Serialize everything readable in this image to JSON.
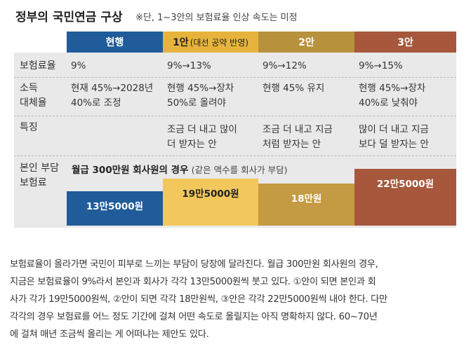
{
  "title": "정부의 국민연금 구상",
  "note": "※단, 1~3안의 보험료율 인상 속도는 미정",
  "table": {
    "columns": [
      {
        "name": "현행"
      },
      {
        "name": "1안",
        "sub": "(대선 공약 반영)"
      },
      {
        "name": "2안"
      },
      {
        "name": "3안"
      }
    ],
    "rows": [
      {
        "label": "보험료율",
        "cells": [
          "9%",
          "9%→13%",
          "9%→12%",
          "9%→15%"
        ]
      },
      {
        "label": "소득\n대체율",
        "cells": [
          "현재 45%→2028년\n40%로 조정",
          "현행 45%→장차\n50%로 올려야",
          "현행 45% 유지",
          "현행 45%→장차\n40%로 낮춰야"
        ]
      },
      {
        "label": "특징",
        "cells": [
          "",
          "조금 더 내고 많이\n더 받자는 안",
          "조금 더 내고 지금\n처럼 받자는 안",
          "많이 더 내고 지금\n보다 덜 받자는 안"
        ]
      }
    ],
    "burden": {
      "label": "본인 부담\n보험료",
      "caption": "월급 300만원 회사원의 경우",
      "caption_note": "(같은 액수를 회사가 부담)",
      "amounts": [
        "13만5000원",
        "19만5000원",
        "18만원",
        "22만5000원"
      ]
    }
  },
  "paragraph": [
    "보험료율이 올라가면 국민이 피부로 느끼는 부담이 당장에 달라진다. 월급 300만원 회사원의 경우,",
    "지금은 보험료율이 9%라서 본인과 회사가 각각 13만5000원씩 붓고 있다. ①안이 되면 본인과 회",
    "사가 각가 19만5000원씩, ②안이 되면 각각 18만원씩, ③안은 각각 22만5000원씩 내야 한다. 다만",
    "각각의 경우 보험료를 어느 정도 기간에 걸쳐 어떤 속도로 올릴지는 아직 명확하지 않다. 60~70년",
    "에 걸쳐 매년 조금씩 올리는 게 어떠냐는 제안도 있다."
  ]
}
